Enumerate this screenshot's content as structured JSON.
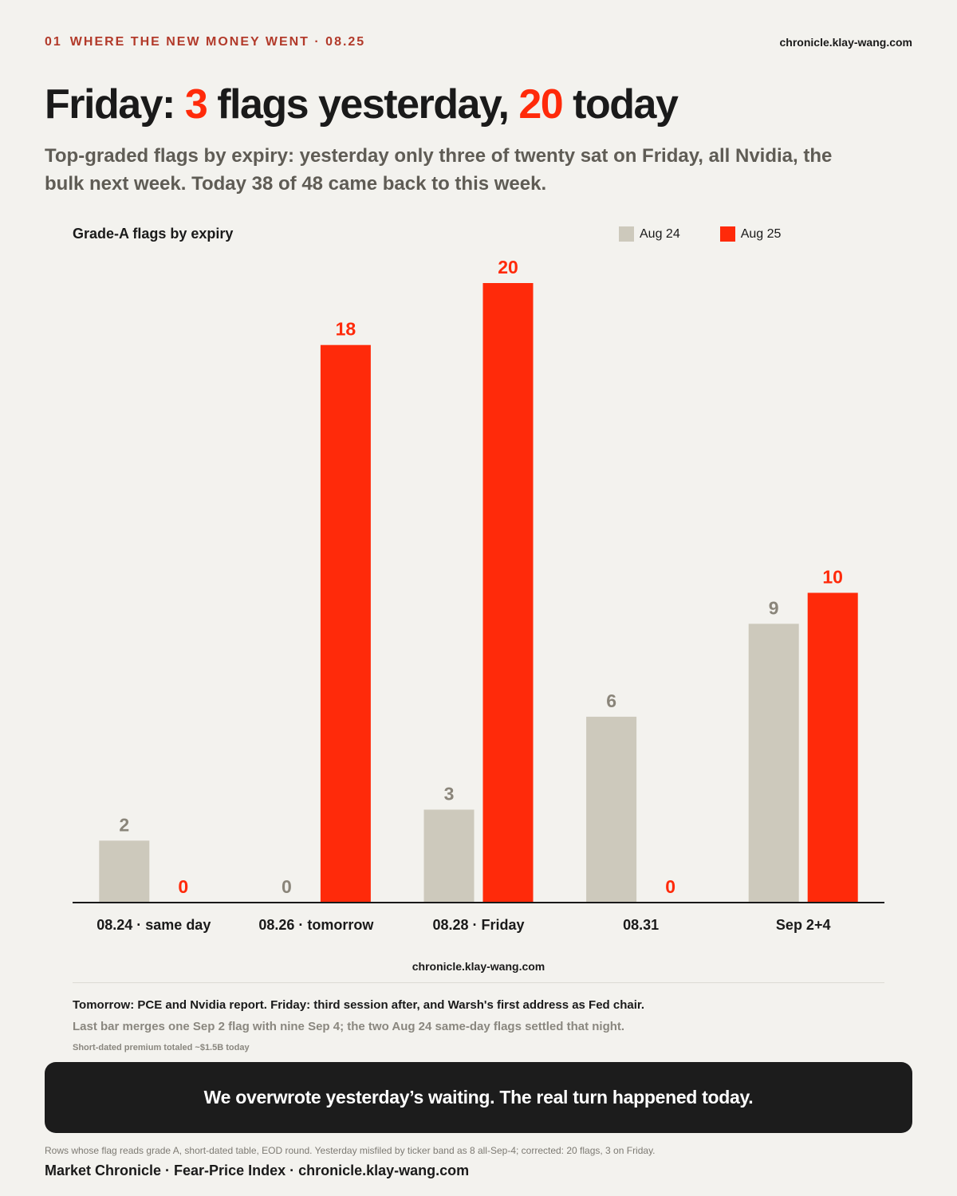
{
  "header": {
    "kicker_num": "01",
    "kicker_text": "WHERE THE NEW MONEY WENT · 08.25",
    "site": "chronicle.klay-wang.com"
  },
  "headline": {
    "part1": "Friday: ",
    "num1": "3",
    "part2": " flags yesterday, ",
    "num2": "20",
    "part3": " today"
  },
  "subhead": "Top-graded flags by expiry: yesterday only three of twenty sat on Friday, all Nvidia, the bulk next week. Today 38 of 48 came back to this week.",
  "colors": {
    "aug24": "#cdc9bc",
    "aug25": "#ff2a0a",
    "aug24_label": "#8a857a",
    "accent": "#ff2a0a"
  },
  "chart_data": {
    "type": "bar",
    "title": "Grade-A flags by expiry",
    "categories": [
      "08.24 · same day",
      "08.26 · tomorrow",
      "08.28 · Friday",
      "08.31",
      "Sep 2+4"
    ],
    "series": [
      {
        "name": "Aug 24",
        "values": [
          2,
          0,
          3,
          6,
          9
        ]
      },
      {
        "name": "Aug 25",
        "values": [
          0,
          18,
          20,
          0,
          10
        ]
      }
    ],
    "ylim": [
      0,
      20
    ],
    "grid": false,
    "legend": "top-right"
  },
  "chart_site": "chronicle.klay-wang.com",
  "notes": {
    "line1": "Tomorrow: PCE and Nvidia report. Friday: third session after, and Warsh's first address as Fed chair.",
    "line2": "Last bar merges one Sep 2 flag with nine Sep 4; the two Aug 24 same-day flags settled that night.",
    "line3": "Short-dated premium totaled ~$1.5B today"
  },
  "banner": "We overwrote yesterday’s waiting. The real turn happened today.",
  "footnote": "Rows whose flag reads grade A, short-dated table, EOD round. Yesterday misfiled by ticker band as 8 all-Sep-4; corrected: 20 flags, 3 on Friday.",
  "footer": "Market Chronicle · Fear-Price Index · chronicle.klay-wang.com"
}
